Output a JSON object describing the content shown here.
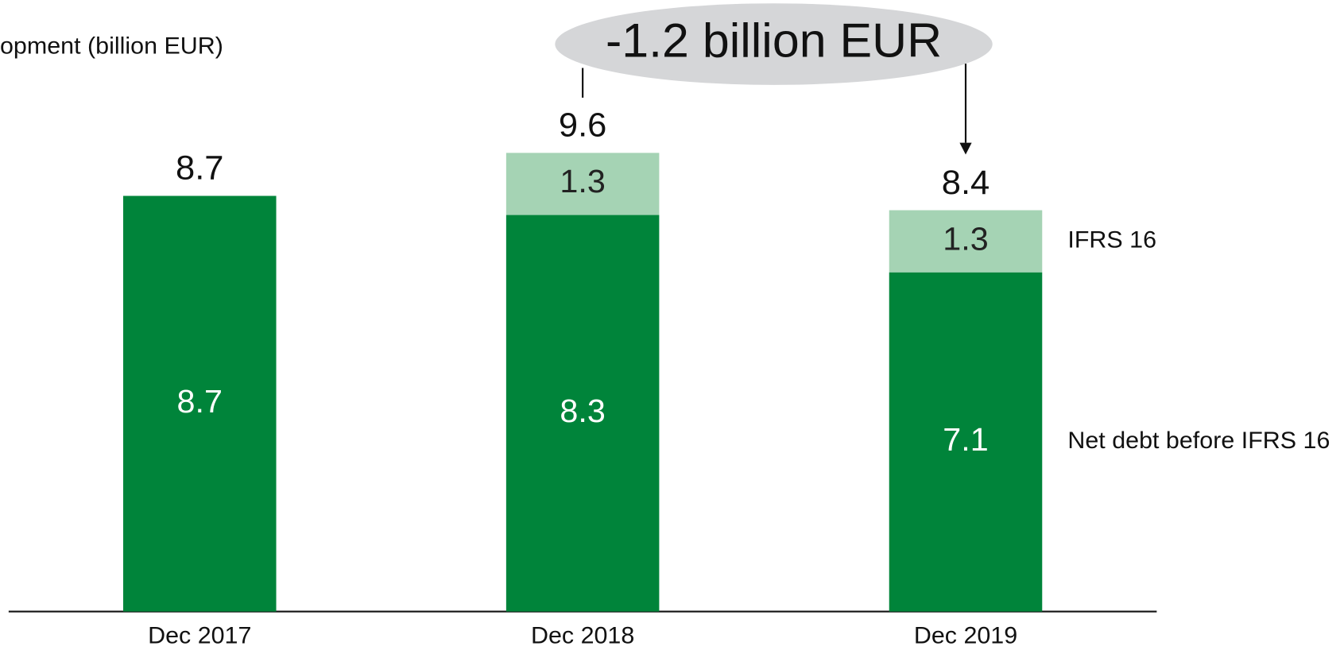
{
  "chart_data": {
    "type": "bar",
    "stacked": true,
    "title": "opment (billion EUR)",
    "annotation": "-1.2 billion EUR",
    "categories": [
      "Dec 2017",
      "Dec 2018",
      "Dec 2019"
    ],
    "series": [
      {
        "name": "Net debt before IFRS 16",
        "color": "#00843a",
        "values": [
          8.7,
          8.3,
          7.1
        ]
      },
      {
        "name": "IFRS 16",
        "color": "#a5d3b4",
        "values": [
          null,
          1.3,
          1.3
        ]
      }
    ],
    "totals": [
      8.7,
      9.6,
      8.4
    ],
    "ylim": [
      0,
      12.8
    ]
  }
}
